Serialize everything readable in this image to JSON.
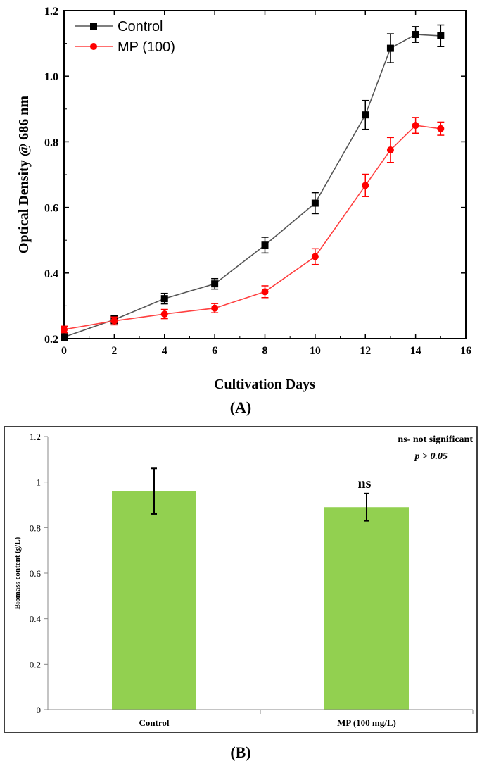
{
  "chart_data": [
    {
      "panel": "(A)",
      "type": "line",
      "xlabel": "Cultivation Days",
      "ylabel": "Optical Density @ 686 nm",
      "xlim": [
        0,
        16
      ],
      "ylim": [
        0.2,
        1.2
      ],
      "xticks": [
        0,
        2,
        4,
        6,
        8,
        10,
        12,
        14,
        16
      ],
      "xtick_labels": [
        "0",
        "2",
        "4",
        "6",
        "8",
        "10",
        "12",
        "14",
        "16"
      ],
      "yticks": [
        0.2,
        0.4,
        0.6,
        0.8,
        1.0,
        1.2
      ],
      "ytick_labels": [
        "0.2",
        "0.4",
        "0.6",
        "0.8",
        "1.0",
        "1.2"
      ],
      "legend_position": "top-left",
      "series": [
        {
          "name": "Control",
          "color": "#000000",
          "line_color": "#555555",
          "marker": "square",
          "x": [
            0,
            2,
            4,
            6,
            8,
            10,
            12,
            13,
            14,
            15
          ],
          "y": [
            0.205,
            0.258,
            0.322,
            0.367,
            0.485,
            0.613,
            0.882,
            1.085,
            1.127,
            1.123
          ],
          "err": [
            0.01,
            0.012,
            0.016,
            0.016,
            0.024,
            0.032,
            0.044,
            0.044,
            0.024,
            0.033
          ]
        },
        {
          "name": "MP (100)",
          "color": "#ff0000",
          "line_color": "#ff4040",
          "marker": "circle",
          "x": [
            0,
            2,
            4,
            6,
            8,
            10,
            12,
            13,
            14,
            15
          ],
          "y": [
            0.228,
            0.254,
            0.275,
            0.293,
            0.343,
            0.45,
            0.667,
            0.775,
            0.85,
            0.84
          ],
          "err": [
            0.01,
            0.012,
            0.014,
            0.014,
            0.018,
            0.024,
            0.034,
            0.038,
            0.024,
            0.02
          ]
        }
      ]
    },
    {
      "panel": "(B)",
      "type": "bar",
      "categories": [
        "Control",
        "MP (100 mg/L)"
      ],
      "values": [
        0.96,
        0.89
      ],
      "errors": [
        0.1,
        0.06
      ],
      "bar_color": "#92d050",
      "ylabel": "Biomass content (g/L)",
      "ylim": [
        0,
        1.2
      ],
      "yticks": [
        0,
        0.2,
        0.4,
        0.6,
        0.8,
        1.0,
        1.2
      ],
      "ytick_labels": [
        "0",
        "0.2",
        "0.4",
        "0.6",
        "0.8",
        "1",
        "1.2"
      ],
      "bar_annotations": [
        "",
        "ns"
      ],
      "note_lines": [
        "ns- not significant",
        "p > 0.05"
      ]
    }
  ]
}
